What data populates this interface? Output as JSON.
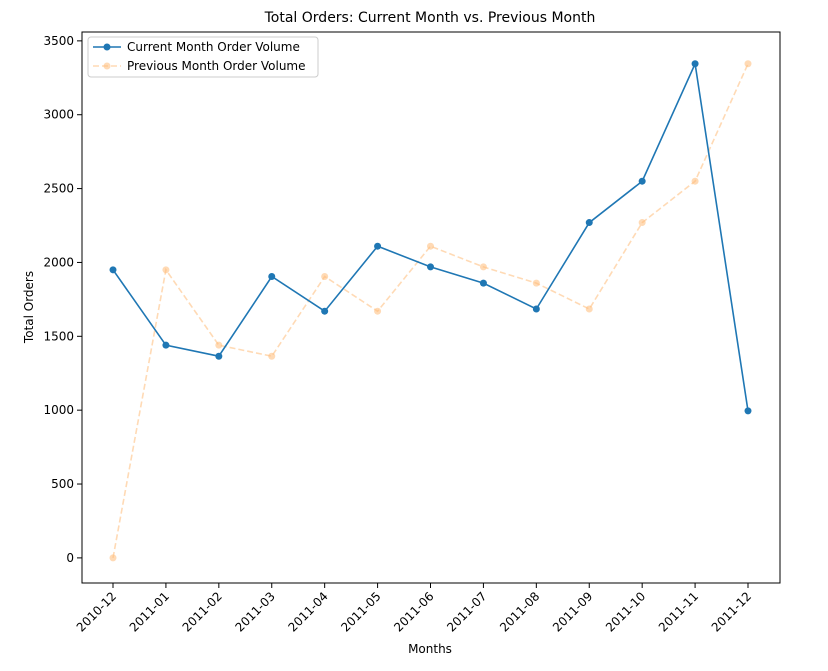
{
  "chart_data": {
    "type": "line",
    "title": "Total Orders: Current Month vs. Previous Month",
    "xlabel": "Months",
    "ylabel": "Total Orders",
    "categories": [
      "2010-12",
      "2011-01",
      "2011-02",
      "2011-03",
      "2011-04",
      "2011-05",
      "2011-06",
      "2011-07",
      "2011-08",
      "2011-09",
      "2011-10",
      "2011-11",
      "2011-12"
    ],
    "yticks": [
      0,
      500,
      1000,
      1500,
      2000,
      2500,
      3000,
      3500
    ],
    "ylim": [
      -170,
      3560
    ],
    "grid": false,
    "legend_position": "top-left",
    "series": [
      {
        "name": "Current Month Order Volume",
        "color": "#1f77b4",
        "style": "solid",
        "values": [
          1950,
          1440,
          1365,
          1905,
          1670,
          2110,
          1970,
          1860,
          1685,
          2270,
          2550,
          3345,
          995
        ]
      },
      {
        "name": "Previous Month Order Volume",
        "color": "#ffbb78",
        "style": "dashed",
        "values": [
          0,
          1950,
          1440,
          1365,
          1905,
          1670,
          2110,
          1970,
          1860,
          1685,
          2270,
          2550,
          3345
        ]
      }
    ]
  }
}
